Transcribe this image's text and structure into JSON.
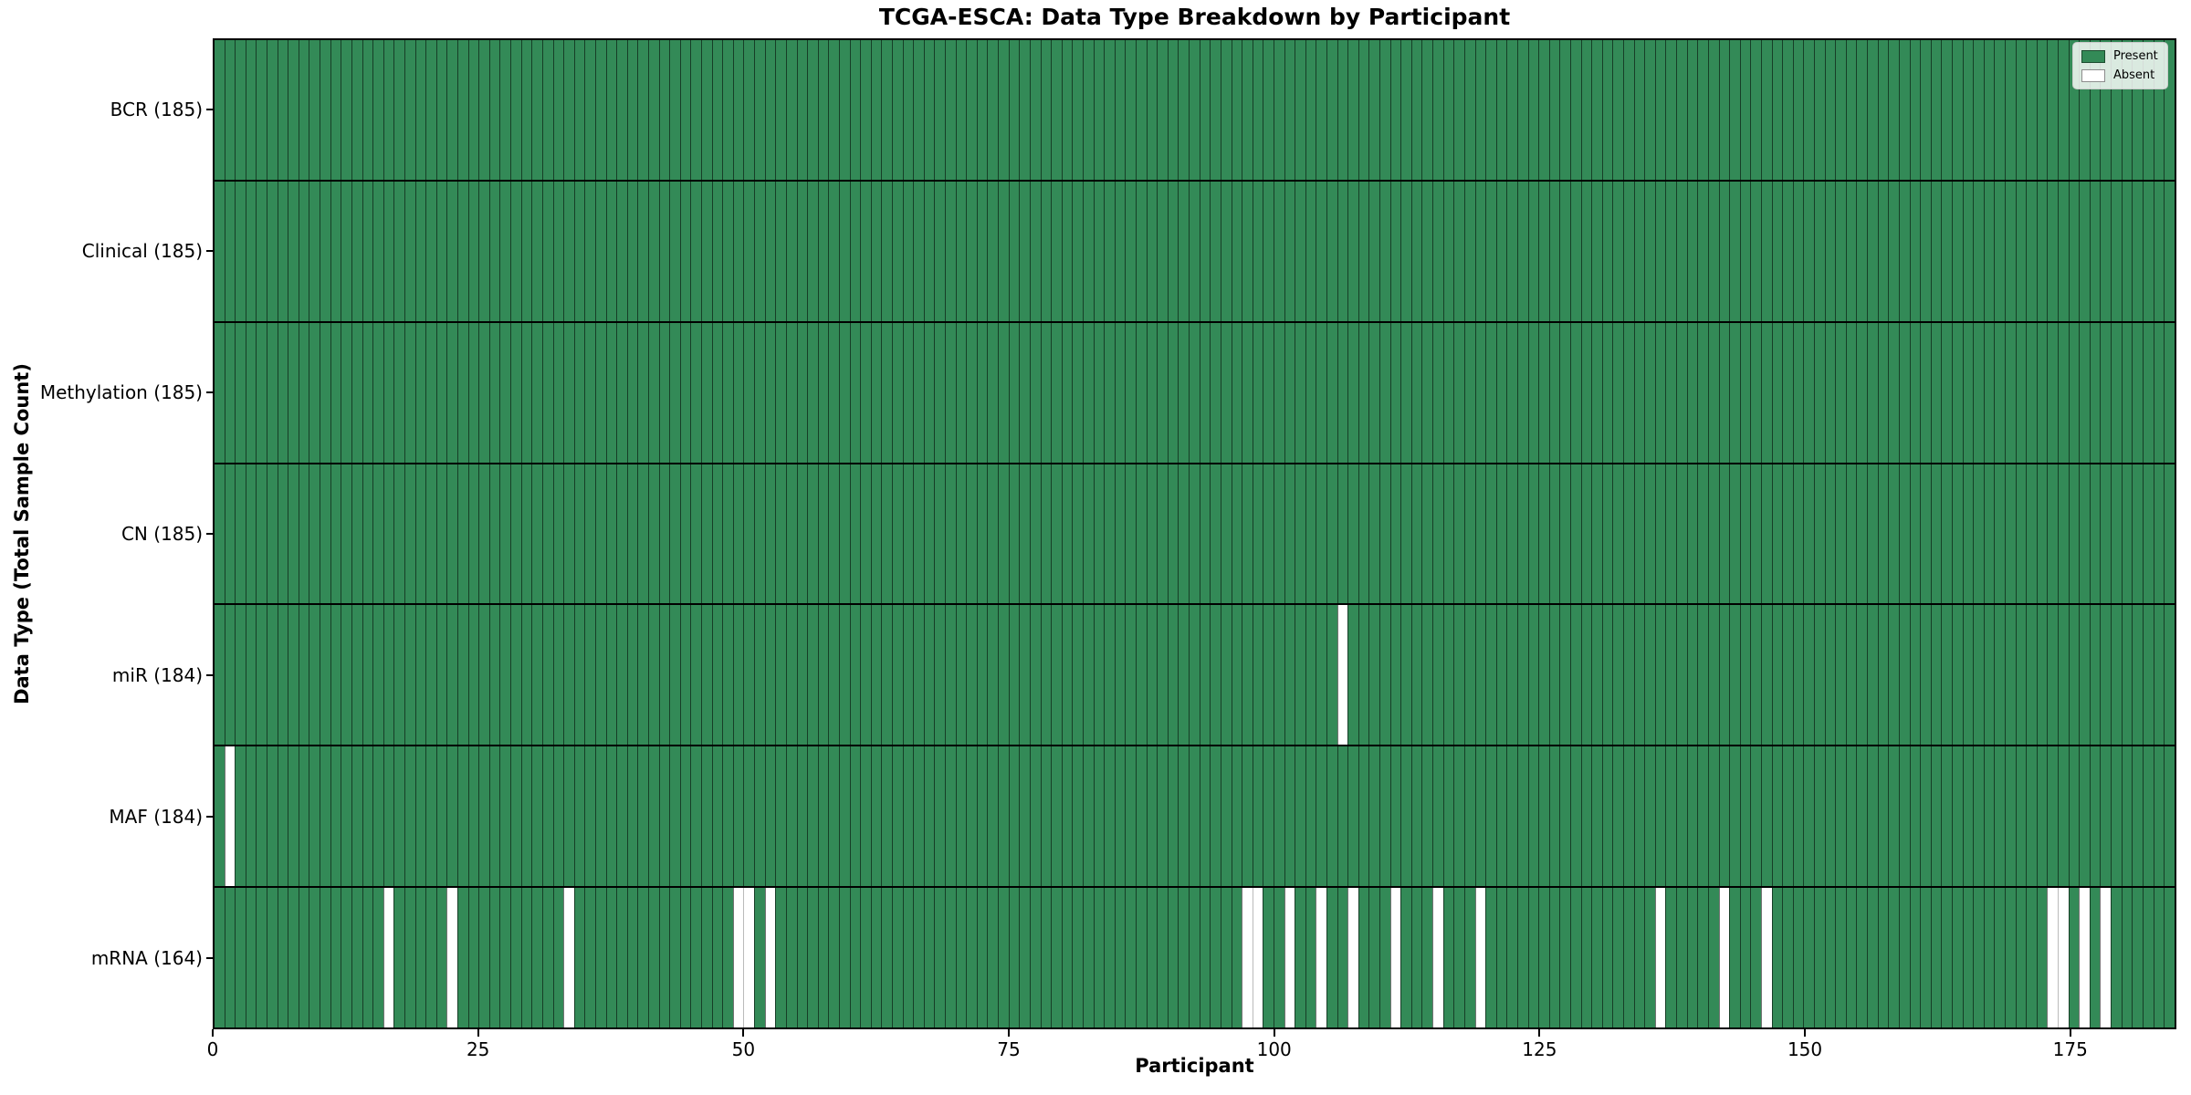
{
  "title": "TCGA-ESCA: Data Type Breakdown by Participant",
  "x_axis_label": "Participant",
  "y_axis_label": "Data Type (Total Sample Count)",
  "legend": {
    "present_label": "Present",
    "absent_label": "Absent"
  },
  "colors": {
    "present": "#338a57",
    "absent": "#ffffff",
    "bar_edge_present": "rgba(0,0,0,0.55)",
    "bar_edge_absent": "#bbbbbb",
    "row_divider": "#000000",
    "text": "#000000"
  },
  "chart_data": {
    "type": "heatmap",
    "title": "TCGA-ESCA: Data Type Breakdown by Participant",
    "xlabel": "Participant",
    "ylabel": "Data Type (Total Sample Count)",
    "n_participants": 185,
    "x_ticks": [
      0,
      25,
      50,
      75,
      100,
      125,
      150,
      175
    ],
    "legend_entries": [
      "Present",
      "Absent"
    ],
    "legend_position": "upper right",
    "grid": false,
    "rows": [
      {
        "label": "BCR (185)",
        "data_type": "BCR",
        "total_sample_count": 185,
        "absent_participants": []
      },
      {
        "label": "Clinical (185)",
        "data_type": "Clinical",
        "total_sample_count": 185,
        "absent_participants": []
      },
      {
        "label": "Methylation (185)",
        "data_type": "Methylation",
        "total_sample_count": 185,
        "absent_participants": []
      },
      {
        "label": "CN (185)",
        "data_type": "CN",
        "total_sample_count": 185,
        "absent_participants": []
      },
      {
        "label": "miR (184)",
        "data_type": "miR",
        "total_sample_count": 184,
        "absent_participants": [
          106
        ]
      },
      {
        "label": "MAF (184)",
        "data_type": "MAF",
        "total_sample_count": 184,
        "absent_participants": [
          1
        ]
      },
      {
        "label": "mRNA (164)",
        "data_type": "mRNA",
        "total_sample_count": 164,
        "absent_participants": [
          16,
          22,
          33,
          49,
          50,
          52,
          97,
          98,
          101,
          104,
          107,
          111,
          115,
          119,
          136,
          142,
          146,
          173,
          174,
          176,
          178
        ]
      }
    ]
  }
}
